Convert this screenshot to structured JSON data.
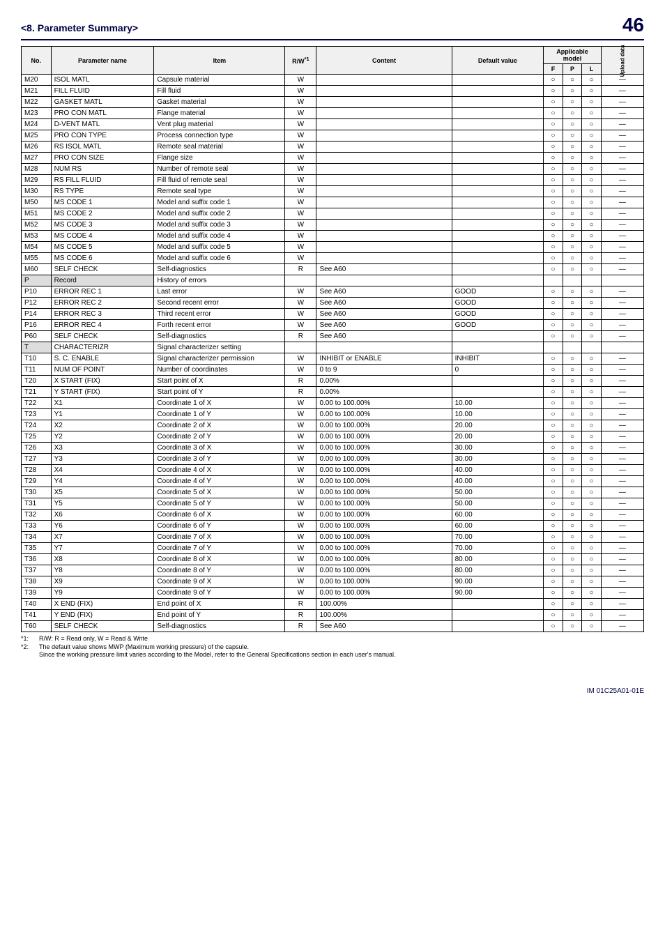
{
  "header": {
    "section": "<8.  Parameter Summary>",
    "page": "46"
  },
  "columns": {
    "no": "No.",
    "pname": "Parameter name",
    "item": "Item",
    "rw": "R/W",
    "rw_sup": "*1",
    "content": "Content",
    "def": "Default value",
    "app_group": "Applicable model",
    "F": "F",
    "P": "P",
    "L": "L",
    "upl": "Upload data"
  },
  "rows": [
    {
      "no": "M20",
      "pname": "ISOL MATL",
      "item": "Capsule material",
      "rw": "W",
      "content": "",
      "def": "",
      "F": "○",
      "P": "○",
      "L": "○",
      "upl": "—",
      "shade": false,
      "pshade": false
    },
    {
      "no": "M21",
      "pname": "FILL FLUID",
      "item": "Fill fluid",
      "rw": "W",
      "content": "",
      "def": "",
      "F": "○",
      "P": "○",
      "L": "○",
      "upl": "—",
      "shade": false,
      "pshade": false
    },
    {
      "no": "M22",
      "pname": "GASKET MATL",
      "item": "Gasket material",
      "rw": "W",
      "content": "",
      "def": "",
      "F": "○",
      "P": "○",
      "L": "○",
      "upl": "—",
      "shade": false,
      "pshade": false
    },
    {
      "no": "M23",
      "pname": "PRO CON MATL",
      "item": "Flange material",
      "rw": "W",
      "content": "",
      "def": "",
      "F": "○",
      "P": "○",
      "L": "○",
      "upl": "—",
      "shade": false,
      "pshade": false
    },
    {
      "no": "M24",
      "pname": "D-VENT MATL",
      "item": "Vent plug material",
      "rw": "W",
      "content": "",
      "def": "",
      "F": "○",
      "P": "○",
      "L": "○",
      "upl": "—",
      "shade": false,
      "pshade": false
    },
    {
      "no": "M25",
      "pname": "PRO CON TYPE",
      "item": "Process connection type",
      "rw": "W",
      "content": "",
      "def": "",
      "F": "○",
      "P": "○",
      "L": "○",
      "upl": "—",
      "shade": false,
      "pshade": false
    },
    {
      "no": "M26",
      "pname": "RS ISOL MATL",
      "item": "Remote seal material",
      "rw": "W",
      "content": "",
      "def": "",
      "F": "○",
      "P": "○",
      "L": "○",
      "upl": "—",
      "shade": false,
      "pshade": false
    },
    {
      "no": "M27",
      "pname": "PRO CON SIZE",
      "item": "Flange size",
      "rw": "W",
      "content": "",
      "def": "",
      "F": "○",
      "P": "○",
      "L": "○",
      "upl": "—",
      "shade": false,
      "pshade": false
    },
    {
      "no": "M28",
      "pname": "NUM RS",
      "item": "Number of remote seal",
      "rw": "W",
      "content": "",
      "def": "",
      "F": "○",
      "P": "○",
      "L": "○",
      "upl": "—",
      "shade": false,
      "pshade": false
    },
    {
      "no": "M29",
      "pname": "RS FILL FLUID",
      "item": "Fill fluid of remote seal",
      "rw": "W",
      "content": "",
      "def": "",
      "F": "○",
      "P": "○",
      "L": "○",
      "upl": "—",
      "shade": false,
      "pshade": false
    },
    {
      "no": "M30",
      "pname": "RS TYPE",
      "item": "Remote seal type",
      "rw": "W",
      "content": "",
      "def": "",
      "F": "○",
      "P": "○",
      "L": "○",
      "upl": "—",
      "shade": false,
      "pshade": false
    },
    {
      "no": "M50",
      "pname": "MS CODE 1",
      "item": "Model and suffix code 1",
      "rw": "W",
      "content": "",
      "def": "",
      "F": "○",
      "P": "○",
      "L": "○",
      "upl": "—",
      "shade": false,
      "pshade": false
    },
    {
      "no": "M51",
      "pname": "MS CODE 2",
      "item": "Model and suffix code 2",
      "rw": "W",
      "content": "",
      "def": "",
      "F": "○",
      "P": "○",
      "L": "○",
      "upl": "—",
      "shade": false,
      "pshade": false
    },
    {
      "no": "M52",
      "pname": "MS CODE 3",
      "item": "Model and suffix code 3",
      "rw": "W",
      "content": "",
      "def": "",
      "F": "○",
      "P": "○",
      "L": "○",
      "upl": "—",
      "shade": false,
      "pshade": false
    },
    {
      "no": "M53",
      "pname": "MS CODE 4",
      "item": "Model and suffix code 4",
      "rw": "W",
      "content": "",
      "def": "",
      "F": "○",
      "P": "○",
      "L": "○",
      "upl": "—",
      "shade": false,
      "pshade": false
    },
    {
      "no": "M54",
      "pname": "MS CODE 5",
      "item": "Model and suffix code 5",
      "rw": "W",
      "content": "",
      "def": "",
      "F": "○",
      "P": "○",
      "L": "○",
      "upl": "—",
      "shade": false,
      "pshade": false
    },
    {
      "no": "M55",
      "pname": "MS CODE 6",
      "item": "Model and suffix code 6",
      "rw": "W",
      "content": "",
      "def": "",
      "F": "○",
      "P": "○",
      "L": "○",
      "upl": "—",
      "shade": false,
      "pshade": false
    },
    {
      "no": "M60",
      "pname": "SELF CHECK",
      "item": "Self-diagnostics",
      "rw": "R",
      "content": "See A60",
      "def": "",
      "F": "○",
      "P": "○",
      "L": "○",
      "upl": "—",
      "shade": false,
      "pshade": false
    },
    {
      "no": "P",
      "pname": "Record",
      "item": "History of errors",
      "rw": "",
      "content": "",
      "def": "",
      "F": "",
      "P": "",
      "L": "",
      "upl": "",
      "shade": true,
      "pshade": true
    },
    {
      "no": "P10",
      "pname": "ERROR REC 1",
      "item": "Last error",
      "rw": "W",
      "content": "See A60",
      "def": "GOOD",
      "F": "○",
      "P": "○",
      "L": "○",
      "upl": "—",
      "shade": false,
      "pshade": false
    },
    {
      "no": "P12",
      "pname": "ERROR REC 2",
      "item": "Second recent error",
      "rw": "W",
      "content": "See A60",
      "def": "GOOD",
      "F": "○",
      "P": "○",
      "L": "○",
      "upl": "—",
      "shade": false,
      "pshade": false
    },
    {
      "no": "P14",
      "pname": "ERROR REC 3",
      "item": "Third recent error",
      "rw": "W",
      "content": "See A60",
      "def": "GOOD",
      "F": "○",
      "P": "○",
      "L": "○",
      "upl": "—",
      "shade": false,
      "pshade": false
    },
    {
      "no": "P16",
      "pname": "ERROR REC 4",
      "item": "Forth recent error",
      "rw": "W",
      "content": "See A60",
      "def": "GOOD",
      "F": "○",
      "P": "○",
      "L": "○",
      "upl": "—",
      "shade": false,
      "pshade": false
    },
    {
      "no": "P60",
      "pname": "SELF CHECK",
      "item": "Self-diagnostics",
      "rw": "R",
      "content": "See A60",
      "def": "",
      "F": "○",
      "P": "○",
      "L": "○",
      "upl": "—",
      "shade": false,
      "pshade": false
    },
    {
      "no": "T",
      "pname": "CHARACTERIZR",
      "item": "Signal characterizer setting",
      "rw": "",
      "content": "",
      "def": "",
      "F": "",
      "P": "",
      "L": "",
      "upl": "",
      "shade": true,
      "pshade": false
    },
    {
      "no": "T10",
      "pname": "S. C. ENABLE",
      "item": "Signal characterizer permission",
      "rw": "W",
      "content": "INHIBIT or ENABLE",
      "def": "INHIBIT",
      "F": "○",
      "P": "○",
      "L": "○",
      "upl": "—",
      "shade": false,
      "pshade": false
    },
    {
      "no": "T11",
      "pname": "NUM OF POINT",
      "item": "Number of coordinates",
      "rw": "W",
      "content": "0 to 9",
      "def": "0",
      "F": "○",
      "P": "○",
      "L": "○",
      "upl": "—",
      "shade": false,
      "pshade": false
    },
    {
      "no": "T20",
      "pname": "X START (FIX)",
      "item": "Start point of X",
      "rw": "R",
      "content": "0.00%",
      "def": "",
      "F": "○",
      "P": "○",
      "L": "○",
      "upl": "—",
      "shade": false,
      "pshade": false
    },
    {
      "no": "T21",
      "pname": "Y START (FIX)",
      "item": "Start point of Y",
      "rw": "R",
      "content": "0.00%",
      "def": "",
      "F": "○",
      "P": "○",
      "L": "○",
      "upl": "—",
      "shade": false,
      "pshade": false
    },
    {
      "no": "T22",
      "pname": "X1",
      "item": "Coordinate 1 of X",
      "rw": "W",
      "content": "0.00 to 100.00%",
      "def": "10.00",
      "F": "○",
      "P": "○",
      "L": "○",
      "upl": "—",
      "shade": false,
      "pshade": false
    },
    {
      "no": "T23",
      "pname": "Y1",
      "item": "Coordinate 1 of Y",
      "rw": "W",
      "content": "0.00 to 100.00%",
      "def": "10.00",
      "F": "○",
      "P": "○",
      "L": "○",
      "upl": "—",
      "shade": false,
      "pshade": false
    },
    {
      "no": "T24",
      "pname": "X2",
      "item": "Coordinate 2 of X",
      "rw": "W",
      "content": "0.00 to 100.00%",
      "def": "20.00",
      "F": "○",
      "P": "○",
      "L": "○",
      "upl": "—",
      "shade": false,
      "pshade": false
    },
    {
      "no": "T25",
      "pname": "Y2",
      "item": "Coordinate 2 of Y",
      "rw": "W",
      "content": "0.00 to 100.00%",
      "def": "20.00",
      "F": "○",
      "P": "○",
      "L": "○",
      "upl": "—",
      "shade": false,
      "pshade": false
    },
    {
      "no": "T26",
      "pname": "X3",
      "item": "Coordinate 3 of X",
      "rw": "W",
      "content": "0.00 to 100.00%",
      "def": "30.00",
      "F": "○",
      "P": "○",
      "L": "○",
      "upl": "—",
      "shade": false,
      "pshade": false
    },
    {
      "no": "T27",
      "pname": "Y3",
      "item": "Coordinate 3 of Y",
      "rw": "W",
      "content": "0.00 to 100.00%",
      "def": "30.00",
      "F": "○",
      "P": "○",
      "L": "○",
      "upl": "—",
      "shade": false,
      "pshade": false
    },
    {
      "no": "T28",
      "pname": "X4",
      "item": "Coordinate 4 of X",
      "rw": "W",
      "content": "0.00 to 100.00%",
      "def": "40.00",
      "F": "○",
      "P": "○",
      "L": "○",
      "upl": "—",
      "shade": false,
      "pshade": false
    },
    {
      "no": "T29",
      "pname": "Y4",
      "item": "Coordinate 4 of Y",
      "rw": "W",
      "content": "0.00 to 100.00%",
      "def": "40.00",
      "F": "○",
      "P": "○",
      "L": "○",
      "upl": "—",
      "shade": false,
      "pshade": false
    },
    {
      "no": "T30",
      "pname": "X5",
      "item": "Coordinate 5 of X",
      "rw": "W",
      "content": "0.00 to 100.00%",
      "def": "50.00",
      "F": "○",
      "P": "○",
      "L": "○",
      "upl": "—",
      "shade": false,
      "pshade": false
    },
    {
      "no": "T31",
      "pname": "Y5",
      "item": "Coordinate 5 of Y",
      "rw": "W",
      "content": "0.00 to 100.00%",
      "def": "50.00",
      "F": "○",
      "P": "○",
      "L": "○",
      "upl": "—",
      "shade": false,
      "pshade": false
    },
    {
      "no": "T32",
      "pname": "X6",
      "item": "Coordinate 6 of X",
      "rw": "W",
      "content": "0.00 to 100.00%",
      "def": "60.00",
      "F": "○",
      "P": "○",
      "L": "○",
      "upl": "—",
      "shade": false,
      "pshade": false
    },
    {
      "no": "T33",
      "pname": "Y6",
      "item": "Coordinate 6 of Y",
      "rw": "W",
      "content": "0.00 to 100.00%",
      "def": "60.00",
      "F": "○",
      "P": "○",
      "L": "○",
      "upl": "—",
      "shade": false,
      "pshade": false
    },
    {
      "no": "T34",
      "pname": "X7",
      "item": "Coordinate 7 of X",
      "rw": "W",
      "content": "0.00 to 100.00%",
      "def": "70.00",
      "F": "○",
      "P": "○",
      "L": "○",
      "upl": "—",
      "shade": false,
      "pshade": false
    },
    {
      "no": "T35",
      "pname": "Y7",
      "item": "Coordinate 7 of Y",
      "rw": "W",
      "content": "0.00 to 100.00%",
      "def": "70.00",
      "F": "○",
      "P": "○",
      "L": "○",
      "upl": "—",
      "shade": false,
      "pshade": false
    },
    {
      "no": "T36",
      "pname": "X8",
      "item": "Coordinate 8 of X",
      "rw": "W",
      "content": "0.00 to 100.00%",
      "def": "80.00",
      "F": "○",
      "P": "○",
      "L": "○",
      "upl": "—",
      "shade": false,
      "pshade": false
    },
    {
      "no": "T37",
      "pname": "Y8",
      "item": "Coordinate 8 of Y",
      "rw": "W",
      "content": "0.00 to 100.00%",
      "def": "80.00",
      "F": "○",
      "P": "○",
      "L": "○",
      "upl": "—",
      "shade": false,
      "pshade": false
    },
    {
      "no": "T38",
      "pname": "X9",
      "item": "Coordinate 9 of X",
      "rw": "W",
      "content": "0.00 to 100.00%",
      "def": "90.00",
      "F": "○",
      "P": "○",
      "L": "○",
      "upl": "—",
      "shade": false,
      "pshade": false
    },
    {
      "no": "T39",
      "pname": "Y9",
      "item": "Coordinate 9 of Y",
      "rw": "W",
      "content": "0.00 to 100.00%",
      "def": "90.00",
      "F": "○",
      "P": "○",
      "L": "○",
      "upl": "—",
      "shade": false,
      "pshade": false
    },
    {
      "no": "T40",
      "pname": "X END (FIX)",
      "item": "End point of X",
      "rw": "R",
      "content": "100.00%",
      "def": "",
      "F": "○",
      "P": "○",
      "L": "○",
      "upl": "—",
      "shade": false,
      "pshade": false
    },
    {
      "no": "T41",
      "pname": "Y END (FIX)",
      "item": "End point of Y",
      "rw": "R",
      "content": "100.00%",
      "def": "",
      "F": "○",
      "P": "○",
      "L": "○",
      "upl": "—",
      "shade": false,
      "pshade": false
    },
    {
      "no": "T60",
      "pname": "SELF CHECK",
      "item": "Self-diagnostics",
      "rw": "R",
      "content": "See A60",
      "def": "",
      "F": "○",
      "P": "○",
      "L": "○",
      "upl": "—",
      "shade": false,
      "pshade": false
    }
  ],
  "footnotes": [
    {
      "lbl": "*1:",
      "txt": "R/W: R = Read only, W = Read & Write"
    },
    {
      "lbl": "*2:",
      "txt": "The default value shows MWP (Maximum working pressure) of the capsule."
    },
    {
      "lbl": "",
      "txt": "Since the working pressure limit varies according to the Model, refer to the General Specifications section in each user's manual."
    }
  ],
  "footer": "IM 01C25A01-01E"
}
